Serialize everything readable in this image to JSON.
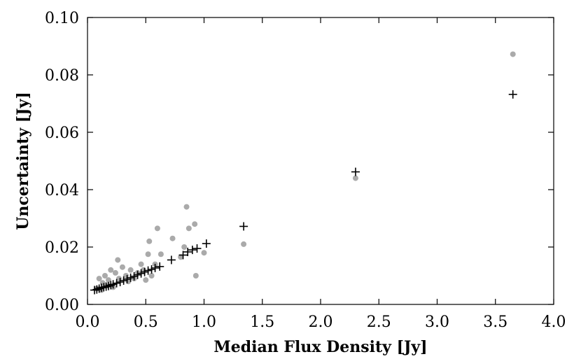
{
  "chart_data": {
    "type": "scatter",
    "title": "",
    "xlabel": "Median Flux Density [Jy]",
    "ylabel": "Uncertainty [Jy]",
    "xlim": [
      0.0,
      4.0
    ],
    "ylim": [
      0.0,
      0.1
    ],
    "xticks": [
      "0.0",
      "0.5",
      "1.0",
      "1.5",
      "2.0",
      "2.5",
      "3.0",
      "3.5",
      "4.0"
    ],
    "yticks": [
      "0.00",
      "0.02",
      "0.04",
      "0.06",
      "0.08",
      "0.10"
    ],
    "grid": false,
    "legend": "none",
    "series": [
      {
        "marker": "circle",
        "color": "#aaaaaa",
        "points": [
          [
            0.08,
            0.0055
          ],
          [
            0.1,
            0.009
          ],
          [
            0.12,
            0.005
          ],
          [
            0.13,
            0.0075
          ],
          [
            0.15,
            0.01
          ],
          [
            0.17,
            0.0065
          ],
          [
            0.18,
            0.0085
          ],
          [
            0.2,
            0.012
          ],
          [
            0.22,
            0.006
          ],
          [
            0.24,
            0.011
          ],
          [
            0.26,
            0.0155
          ],
          [
            0.27,
            0.009
          ],
          [
            0.3,
            0.013
          ],
          [
            0.33,
            0.01
          ],
          [
            0.35,
            0.008
          ],
          [
            0.37,
            0.012
          ],
          [
            0.4,
            0.009
          ],
          [
            0.43,
            0.011
          ],
          [
            0.46,
            0.014
          ],
          [
            0.48,
            0.012
          ],
          [
            0.5,
            0.0085
          ],
          [
            0.52,
            0.0175
          ],
          [
            0.53,
            0.022
          ],
          [
            0.55,
            0.01
          ],
          [
            0.58,
            0.014
          ],
          [
            0.6,
            0.0265
          ],
          [
            0.63,
            0.0175
          ],
          [
            0.73,
            0.023
          ],
          [
            0.8,
            0.0165
          ],
          [
            0.83,
            0.02
          ],
          [
            0.85,
            0.034
          ],
          [
            0.87,
            0.0265
          ],
          [
            0.92,
            0.028
          ],
          [
            0.93,
            0.01
          ],
          [
            1.0,
            0.018
          ],
          [
            1.34,
            0.021
          ],
          [
            2.3,
            0.044
          ],
          [
            3.65,
            0.0872
          ]
        ]
      },
      {
        "marker": "plus",
        "color": "#000000",
        "points": [
          [
            0.06,
            0.005
          ],
          [
            0.08,
            0.0052
          ],
          [
            0.1,
            0.0055
          ],
          [
            0.12,
            0.0058
          ],
          [
            0.14,
            0.006
          ],
          [
            0.16,
            0.0062
          ],
          [
            0.18,
            0.0064
          ],
          [
            0.2,
            0.0067
          ],
          [
            0.22,
            0.007
          ],
          [
            0.25,
            0.0074
          ],
          [
            0.28,
            0.0078
          ],
          [
            0.31,
            0.0083
          ],
          [
            0.34,
            0.0088
          ],
          [
            0.37,
            0.0093
          ],
          [
            0.4,
            0.0098
          ],
          [
            0.43,
            0.0103
          ],
          [
            0.46,
            0.0108
          ],
          [
            0.49,
            0.0113
          ],
          [
            0.52,
            0.0118
          ],
          [
            0.55,
            0.0122
          ],
          [
            0.58,
            0.0127
          ],
          [
            0.62,
            0.0132
          ],
          [
            0.72,
            0.0155
          ],
          [
            0.82,
            0.0172
          ],
          [
            0.86,
            0.0183
          ],
          [
            0.9,
            0.019
          ],
          [
            0.94,
            0.0195
          ],
          [
            1.02,
            0.0212
          ],
          [
            1.34,
            0.0272
          ],
          [
            2.3,
            0.0462
          ],
          [
            3.65,
            0.0732
          ]
        ]
      }
    ]
  }
}
